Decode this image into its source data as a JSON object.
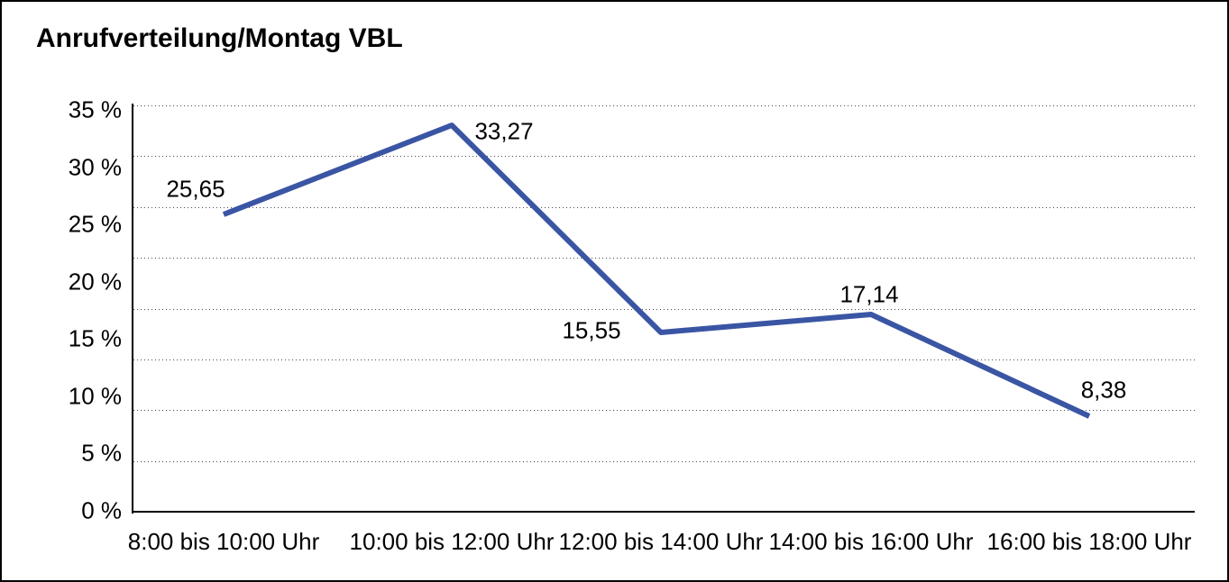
{
  "chart_data": {
    "type": "line",
    "title": "Anrufverteilung/Montag VBL",
    "categories": [
      "8:00 bis 10:00 Uhr",
      "10:00 bis 12:00 Uhr",
      "12:00 bis 14:00 Uhr",
      "14:00 bis 16:00 Uhr",
      "16:00 bis 18:00 Uhr"
    ],
    "values": [
      25.65,
      33.27,
      15.55,
      17.14,
      8.38
    ],
    "point_labels": [
      "25,65",
      "33,27",
      "15,55",
      "17,14",
      "8,38"
    ],
    "y_ticks": [
      "35 %",
      "30 %",
      "25 %",
      "20 %",
      "15 %",
      "10 %",
      "5 %",
      "0 %"
    ],
    "ylim": [
      0,
      35
    ],
    "xlabel": "",
    "ylabel": "",
    "legend": "none",
    "grid": "horizontal-dotted",
    "decimal_separator": ","
  },
  "colors": {
    "background": "#FFFFFF",
    "border": "#000000",
    "axis": "#000000",
    "grid": "#4A4A4A",
    "text": "#000000",
    "line": "#3A55A3"
  }
}
